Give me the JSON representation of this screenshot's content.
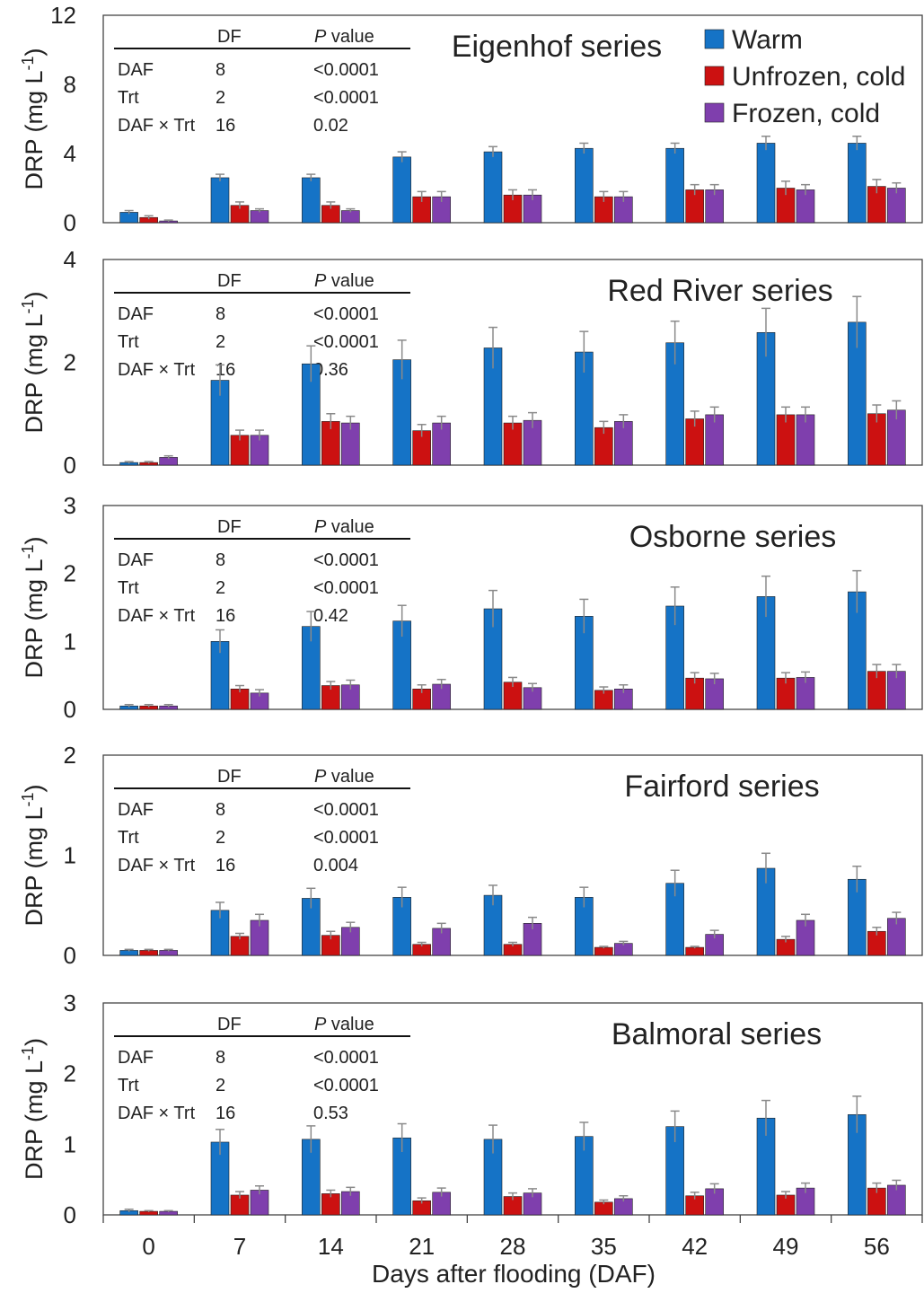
{
  "colors": {
    "warm": "#1573c6",
    "unfrozen": "#cc1111",
    "frozen": "#7f3fad",
    "error_bar": "#8a8a8a",
    "axis": "#444444"
  },
  "legend": [
    {
      "label": "Warm",
      "color": "#1573c6"
    },
    {
      "label": "Unfrozen, cold",
      "color": "#cc1111"
    },
    {
      "label": "Frozen, cold",
      "color": "#7f3fad"
    }
  ],
  "xlabel": "Days after flooding (DAF)",
  "categories": [
    "0",
    "7",
    "14",
    "21",
    "28",
    "35",
    "42",
    "49",
    "56"
  ],
  "stats_header": {
    "df": "DF",
    "p_italic": "P",
    "p_rest": " value"
  },
  "chart_data": [
    {
      "type": "bar",
      "title": "Eigenhof series",
      "ylabel": "DRP (mg L-1)",
      "ylim": [
        0,
        12
      ],
      "yticks": [
        "0",
        "4",
        "8",
        "12"
      ],
      "stats": [
        {
          "term": "DAF",
          "df": "8",
          "p": "<0.0001"
        },
        {
          "term": "Trt",
          "df": "2",
          "p": "<0.0001"
        },
        {
          "term": "DAF × Trt",
          "df": "16",
          "p": "0.02"
        }
      ],
      "series": [
        {
          "name": "Warm",
          "values": [
            0.6,
            2.6,
            2.6,
            3.8,
            4.1,
            4.3,
            4.3,
            4.6,
            4.6
          ],
          "errors": [
            0.1,
            0.2,
            0.2,
            0.3,
            0.3,
            0.3,
            0.3,
            0.4,
            0.4
          ]
        },
        {
          "name": "Unfrozen, cold",
          "values": [
            0.3,
            1.0,
            1.0,
            1.5,
            1.6,
            1.5,
            1.9,
            2.0,
            2.1
          ],
          "errors": [
            0.1,
            0.2,
            0.2,
            0.3,
            0.3,
            0.3,
            0.3,
            0.4,
            0.4
          ]
        },
        {
          "name": "Frozen, cold",
          "values": [
            0.1,
            0.7,
            0.7,
            1.5,
            1.6,
            1.5,
            1.9,
            1.9,
            2.0
          ],
          "errors": [
            0.05,
            0.1,
            0.1,
            0.3,
            0.3,
            0.3,
            0.3,
            0.3,
            0.3
          ]
        }
      ]
    },
    {
      "type": "bar",
      "title": "Red River series",
      "ylabel": "DRP (mg L-1)",
      "ylim": [
        0,
        4
      ],
      "yticks": [
        "0",
        "2",
        "4"
      ],
      "stats": [
        {
          "term": "DAF",
          "df": "8",
          "p": "<0.0001"
        },
        {
          "term": "Trt",
          "df": "2",
          "p": "<0.0001"
        },
        {
          "term": "DAF × Trt",
          "df": "16",
          "p": "0.36"
        }
      ],
      "series": [
        {
          "name": "Warm",
          "values": [
            0.05,
            1.65,
            1.97,
            2.05,
            2.28,
            2.2,
            2.38,
            2.58,
            2.78
          ],
          "errors": [
            0.02,
            0.3,
            0.35,
            0.38,
            0.4,
            0.4,
            0.42,
            0.47,
            0.5
          ]
        },
        {
          "name": "Unfrozen, cold",
          "values": [
            0.05,
            0.58,
            0.85,
            0.67,
            0.82,
            0.73,
            0.9,
            0.98,
            1.0
          ],
          "errors": [
            0.02,
            0.1,
            0.15,
            0.12,
            0.13,
            0.12,
            0.15,
            0.15,
            0.17
          ]
        },
        {
          "name": "Frozen, cold",
          "values": [
            0.15,
            0.58,
            0.82,
            0.82,
            0.87,
            0.85,
            0.98,
            0.98,
            1.07
          ],
          "errors": [
            0.03,
            0.1,
            0.13,
            0.13,
            0.15,
            0.13,
            0.15,
            0.15,
            0.18
          ]
        }
      ]
    },
    {
      "type": "bar",
      "title": "Osborne series",
      "ylabel": "DRP (mg L-1)",
      "ylim": [
        0,
        3
      ],
      "yticks": [
        "0",
        "1",
        "2",
        "3"
      ],
      "stats": [
        {
          "term": "DAF",
          "df": "8",
          "p": "<0.0001"
        },
        {
          "term": "Trt",
          "df": "2",
          "p": "<0.0001"
        },
        {
          "term": "DAF × Trt",
          "df": "16",
          "p": "0.42"
        }
      ],
      "series": [
        {
          "name": "Warm",
          "values": [
            0.05,
            1.0,
            1.22,
            1.3,
            1.48,
            1.37,
            1.52,
            1.66,
            1.73
          ],
          "errors": [
            0.02,
            0.17,
            0.22,
            0.23,
            0.27,
            0.25,
            0.28,
            0.3,
            0.31
          ]
        },
        {
          "name": "Unfrozen, cold",
          "values": [
            0.05,
            0.3,
            0.35,
            0.3,
            0.4,
            0.28,
            0.46,
            0.46,
            0.56
          ],
          "errors": [
            0.02,
            0.05,
            0.06,
            0.06,
            0.07,
            0.05,
            0.08,
            0.08,
            0.1
          ]
        },
        {
          "name": "Frozen, cold",
          "values": [
            0.05,
            0.24,
            0.36,
            0.37,
            0.32,
            0.3,
            0.45,
            0.47,
            0.56
          ],
          "errors": [
            0.02,
            0.05,
            0.07,
            0.07,
            0.06,
            0.06,
            0.08,
            0.08,
            0.1
          ]
        }
      ]
    },
    {
      "type": "bar",
      "title": "Fairford series",
      "ylabel": "DRP (mg L-1)",
      "ylim": [
        0,
        2
      ],
      "yticks": [
        "0",
        "1",
        "2"
      ],
      "stats": [
        {
          "term": "DAF",
          "df": "8",
          "p": "<0.0001"
        },
        {
          "term": "Trt",
          "df": "2",
          "p": "<0.0001"
        },
        {
          "term": "DAF × Trt",
          "df": "16",
          "p": "0.004"
        }
      ],
      "series": [
        {
          "name": "Warm",
          "values": [
            0.05,
            0.45,
            0.57,
            0.58,
            0.6,
            0.58,
            0.72,
            0.87,
            0.76
          ],
          "errors": [
            0.01,
            0.08,
            0.1,
            0.1,
            0.1,
            0.1,
            0.13,
            0.15,
            0.13
          ]
        },
        {
          "name": "Unfrozen, cold",
          "values": [
            0.05,
            0.19,
            0.2,
            0.11,
            0.11,
            0.08,
            0.08,
            0.16,
            0.24
          ],
          "errors": [
            0.01,
            0.03,
            0.04,
            0.02,
            0.02,
            0.01,
            0.01,
            0.03,
            0.04
          ]
        },
        {
          "name": "Frozen, cold",
          "values": [
            0.05,
            0.35,
            0.28,
            0.27,
            0.32,
            0.12,
            0.21,
            0.35,
            0.37
          ],
          "errors": [
            0.01,
            0.06,
            0.05,
            0.05,
            0.06,
            0.02,
            0.04,
            0.06,
            0.06
          ]
        }
      ]
    },
    {
      "type": "bar",
      "title": "Balmoral series",
      "ylabel": "DRP (mg L-1)",
      "ylim": [
        0,
        3
      ],
      "yticks": [
        "0",
        "1",
        "2",
        "3"
      ],
      "stats": [
        {
          "term": "DAF",
          "df": "8",
          "p": "<0.0001"
        },
        {
          "term": "Trt",
          "df": "2",
          "p": "<0.0001"
        },
        {
          "term": "DAF × Trt",
          "df": "16",
          "p": "0.53"
        }
      ],
      "series": [
        {
          "name": "Warm",
          "values": [
            0.06,
            1.03,
            1.07,
            1.09,
            1.07,
            1.11,
            1.25,
            1.37,
            1.42
          ],
          "errors": [
            0.02,
            0.18,
            0.19,
            0.2,
            0.2,
            0.2,
            0.22,
            0.25,
            0.26
          ]
        },
        {
          "name": "Unfrozen, cold",
          "values": [
            0.05,
            0.28,
            0.3,
            0.2,
            0.26,
            0.18,
            0.27,
            0.28,
            0.38
          ],
          "errors": [
            0.01,
            0.05,
            0.05,
            0.04,
            0.05,
            0.03,
            0.05,
            0.05,
            0.07
          ]
        },
        {
          "name": "Frozen, cold",
          "values": [
            0.05,
            0.35,
            0.33,
            0.32,
            0.31,
            0.23,
            0.37,
            0.38,
            0.42
          ],
          "errors": [
            0.01,
            0.06,
            0.06,
            0.06,
            0.06,
            0.04,
            0.07,
            0.07,
            0.07
          ]
        }
      ]
    }
  ]
}
